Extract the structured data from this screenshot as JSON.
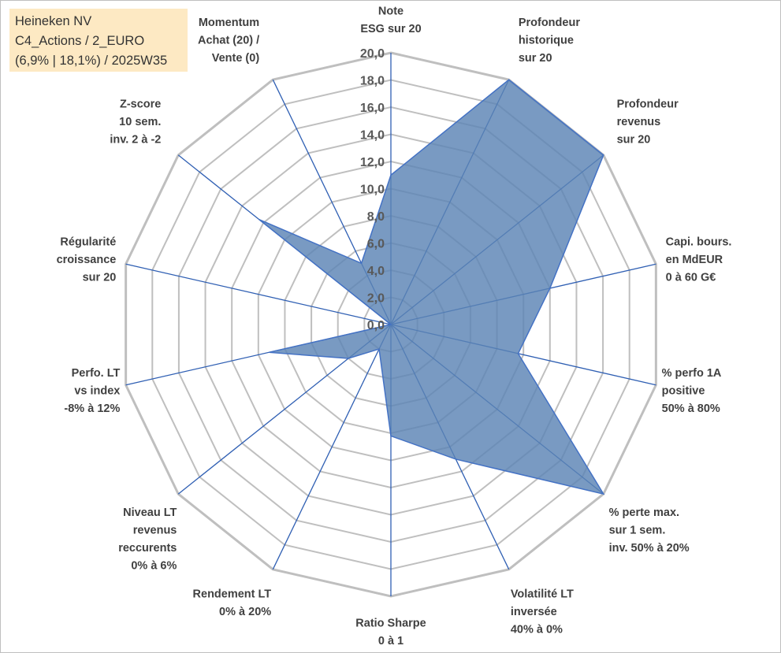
{
  "info": {
    "line1": "Heineken NV",
    "line2": "C4_Actions / 2_EURO",
    "line3": "(6,9% | 18,1%) / 2025W35"
  },
  "colors": {
    "fill": "#5b84b5",
    "stroke": "#4472c4",
    "grid": "#bfbfbf",
    "spoke": "#2f5fb3",
    "info_bg": "#fde9c3"
  },
  "chart_data": {
    "type": "radar",
    "range": [
      0,
      20
    ],
    "tick_step": 2,
    "tick_labels": [
      "0,0",
      "2,0",
      "4,0",
      "6,0",
      "8,0",
      "10,0",
      "12,0",
      "14,0",
      "16,0",
      "18,0",
      "20,0"
    ],
    "axes": [
      {
        "label": [
          "Note",
          "ESG sur 20"
        ],
        "value": 11
      },
      {
        "label": [
          "Profondeur",
          "historique",
          "sur 20"
        ],
        "value": 20
      },
      {
        "label": [
          "Profondeur",
          "revenus",
          "sur 20"
        ],
        "value": 20
      },
      {
        "label": [
          "Capi. bours.",
          "en MdEUR",
          "0 à 60 G€"
        ],
        "value": 12
      },
      {
        "label": [
          "% perfo 1A",
          "positive",
          "50% à 80%"
        ],
        "value": 9.6
      },
      {
        "label": [
          "% perte max.",
          "sur 1 sem.",
          "inv. 50% à 20%"
        ],
        "value": 20
      },
      {
        "label": [
          "Volatilité LT",
          "inversée",
          "40% à 0%"
        ],
        "value": 11
      },
      {
        "label": [
          "Ratio Sharpe",
          "0 à 1"
        ],
        "value": 8.2
      },
      {
        "label": [
          "Rendement LT",
          "0% à 20%"
        ],
        "value": 2
      },
      {
        "label": [
          "Niveau LT",
          "revenus",
          "reccurents",
          "0% à 6%"
        ],
        "value": 4
      },
      {
        "label": [
          "Perfo. LT",
          "vs index",
          "-8% à 12%"
        ],
        "value": 9.2
      },
      {
        "label": [
          "Régularité",
          "croissance",
          "sur 20"
        ],
        "value": 0
      },
      {
        "label": [
          "Z-score",
          "10 sem.",
          "inv. 2 à -2"
        ],
        "value": 12.4
      },
      {
        "label": [
          "Momentum",
          "Achat (20) /",
          "Vente (0)"
        ],
        "value": 5
      }
    ]
  }
}
